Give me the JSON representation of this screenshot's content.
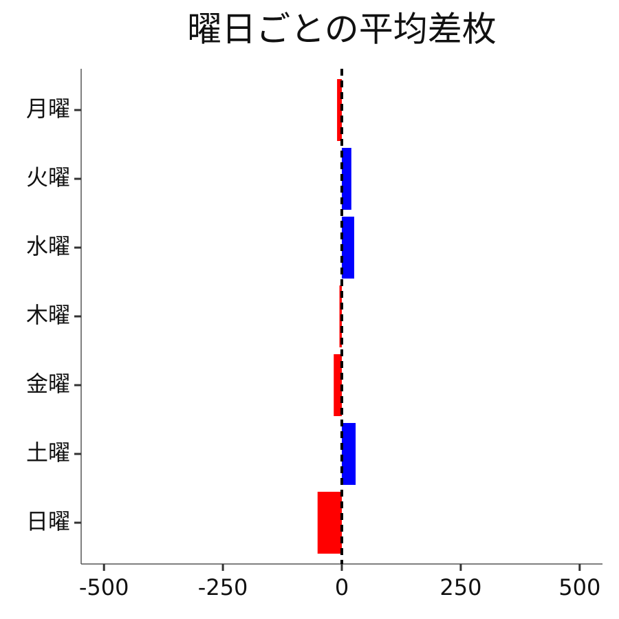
{
  "chart_data": {
    "type": "barh",
    "title": "曜日ごとの平均差枚",
    "categories": [
      "月曜",
      "火曜",
      "水曜",
      "木曜",
      "金曜",
      "土曜",
      "日曜"
    ],
    "values": [
      -10,
      20,
      26,
      -5,
      -17,
      29,
      -51
    ],
    "colors": [
      "#ff0000",
      "#0000ff",
      "#0000ff",
      "#ff0000",
      "#ff0000",
      "#0000ff",
      "#ff0000"
    ],
    "xlim": [
      -548,
      548
    ],
    "xticks": [
      -500,
      -250,
      0,
      250,
      500
    ],
    "vline": 0,
    "grid": false
  }
}
